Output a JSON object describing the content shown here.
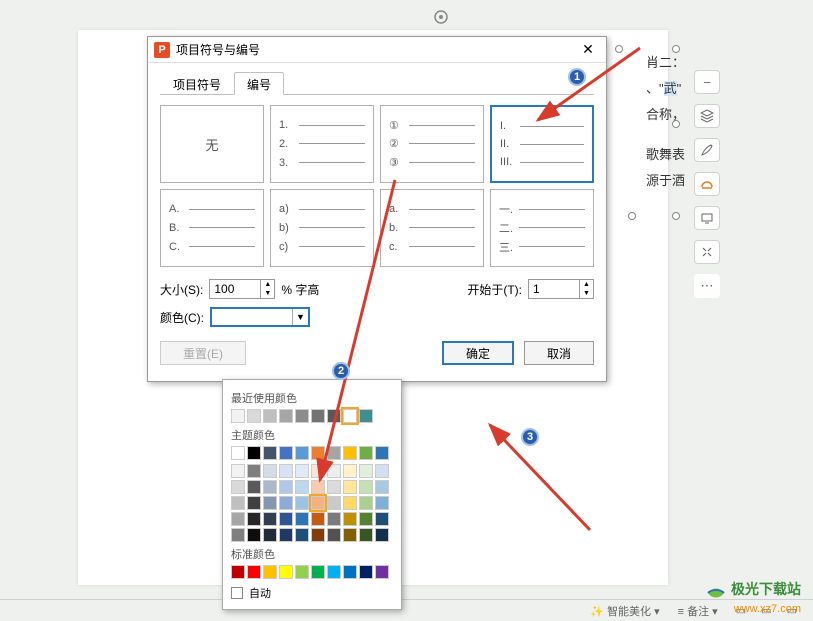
{
  "dialog": {
    "title": "项目符号与编号",
    "tabs": {
      "bullets": "项目符号",
      "numbers": "编号"
    },
    "close": "✕",
    "cells": {
      "none": "无",
      "c1": [
        "1.",
        "2.",
        "3."
      ],
      "c2": [
        "①",
        "②",
        "③"
      ],
      "c3": [
        "I.",
        "II.",
        "III."
      ],
      "c4": [
        "A.",
        "B.",
        "C."
      ],
      "c5": [
        "a)",
        "b)",
        "c)"
      ],
      "c6": [
        "a.",
        "b.",
        "c."
      ],
      "c7": [
        "一.",
        "二.",
        "三."
      ]
    },
    "size_label": "大小(S):",
    "size_value": "100",
    "size_unit": "% 字高",
    "start_label": "开始于(T):",
    "start_value": "1",
    "color_label": "颜色(C):",
    "reset": "重置(E)",
    "ok": "确定",
    "cancel": "取消"
  },
  "picker": {
    "recent_label": "最近使用颜色",
    "theme_label": "主题颜色",
    "std_label": "标准颜色",
    "auto_label": "自动",
    "recent": [
      "#f2f2f2",
      "#d9d9d9",
      "#bfbfbf",
      "#a6a6a6",
      "#8c8c8c",
      "#737373",
      "#595959",
      "#ffffff",
      "#3f8f8f"
    ],
    "theme_row": [
      "#ffffff",
      "#000000",
      "#44546a",
      "#4472c4",
      "#5b9bd5",
      "#ed7d31",
      "#a5a5a5",
      "#ffc000",
      "#70ad47",
      "#2e75b6"
    ],
    "theme_tints": [
      [
        "#f2f2f2",
        "#7f7f7f",
        "#d6dce5",
        "#d9e2f3",
        "#deebf7",
        "#fbe5d6",
        "#ededed",
        "#fff2cc",
        "#e2efda",
        "#d0e0f0"
      ],
      [
        "#d9d9d9",
        "#595959",
        "#adb9ca",
        "#b4c6e7",
        "#bdd7ee",
        "#f8cbad",
        "#dbdbdb",
        "#ffe699",
        "#c5e0b4",
        "#a8c8e4"
      ],
      [
        "#bfbfbf",
        "#404040",
        "#8497b0",
        "#8eaadb",
        "#9cc3e6",
        "#f4b183",
        "#c9c9c9",
        "#ffd966",
        "#a9d08e",
        "#7fb0d8"
      ],
      [
        "#a6a6a6",
        "#262626",
        "#333f50",
        "#2f5597",
        "#2e75b6",
        "#c55a11",
        "#7b7b7b",
        "#bf9000",
        "#548235",
        "#1f4e79"
      ],
      [
        "#7f7f7f",
        "#0d0d0d",
        "#222a35",
        "#1f3864",
        "#1e4e79",
        "#843c0c",
        "#525252",
        "#806000",
        "#375623",
        "#132f4c"
      ]
    ],
    "standard": [
      "#c00000",
      "#ff0000",
      "#ffc000",
      "#ffff00",
      "#92d050",
      "#00b050",
      "#00b0f0",
      "#0070c0",
      "#002060",
      "#7030a0"
    ],
    "selected_recent_index": 7,
    "selected_tint": {
      "row": 2,
      "col": 5
    }
  },
  "bg_text": {
    "l1a": "肖二：",
    "l1b": "",
    "l2a": "、\"",
    "l2b": "武",
    "l2c": "\"",
    "l3": "合称，",
    "l4": "歌舞表",
    "l5": "源于酒"
  },
  "badges": {
    "b1": "1",
    "b2": "2",
    "b3": "3"
  },
  "watermark": {
    "line1": "极光下载站",
    "line2": "www.xz7.com"
  },
  "bottombar": {
    "item1": "智能美化",
    "item2": "备注"
  },
  "colors": {
    "accent": "#2a7ab8",
    "badge": "#2a5db0",
    "arrow": "#d83a2b"
  }
}
